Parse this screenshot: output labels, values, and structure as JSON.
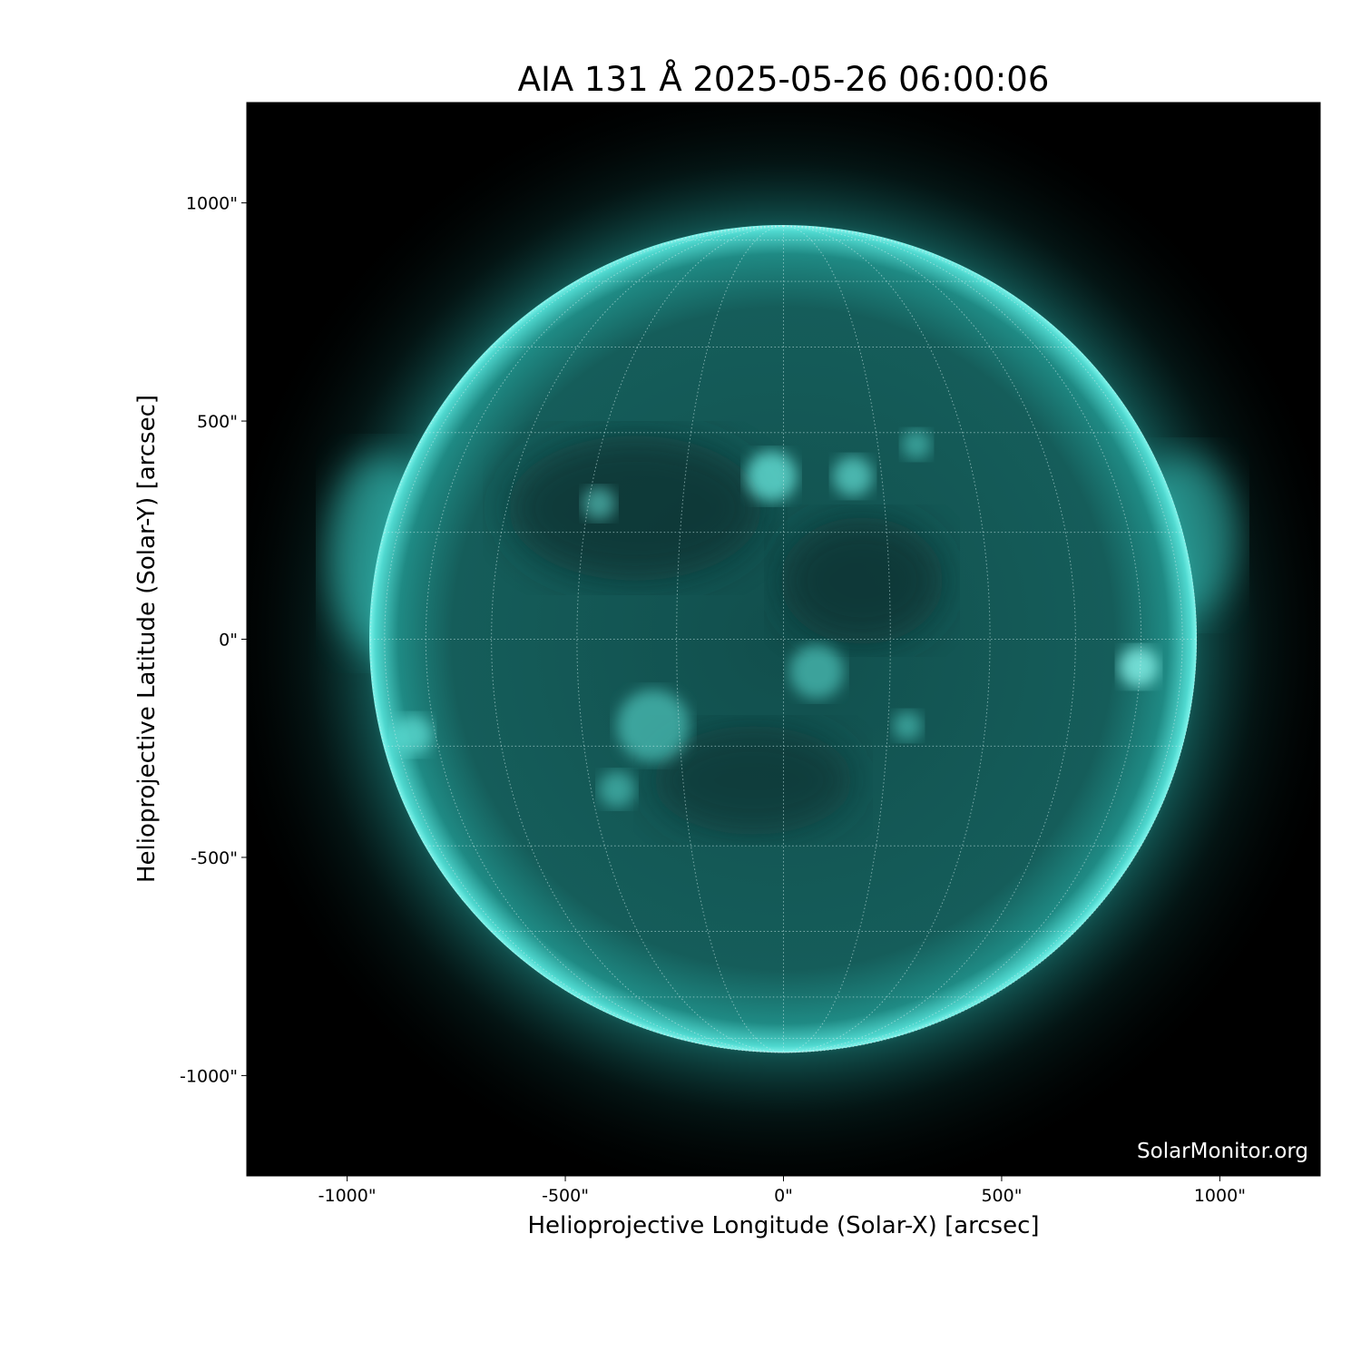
{
  "title": "AIA 131 Å 2025-05-26 06:00:06",
  "xlabel": "Helioprojective Longitude (Solar-X) [arcsec]",
  "ylabel": "Helioprojective Latitude (Solar-Y) [arcsec]",
  "watermark": "SolarMonitor.org",
  "instrument": "AIA",
  "wavelength": "131 Å",
  "colormap": "teal (sdoaia131)",
  "grid": {
    "on": true,
    "spacing_deg": 15,
    "style": "dotted"
  },
  "x_axis": {
    "range": [
      -1230,
      1230
    ],
    "ticks": [
      -1000,
      -500,
      0,
      500,
      1000
    ],
    "tick_labels": [
      "-1000\"",
      "-500\"",
      "0\"",
      "500\"",
      "1000\""
    ]
  },
  "y_axis": {
    "range": [
      -1230,
      1230
    ],
    "ticks": [
      1000,
      500,
      0,
      -500,
      -1000
    ],
    "tick_labels": [
      "1000\"",
      "500\"",
      "0\"",
      "-500\"",
      "-1000\""
    ]
  },
  "solar_radius_arcsec": 947,
  "colors": {
    "limb": "#5ff0e6",
    "disk": "#0f4b4a",
    "background": "#000000"
  }
}
